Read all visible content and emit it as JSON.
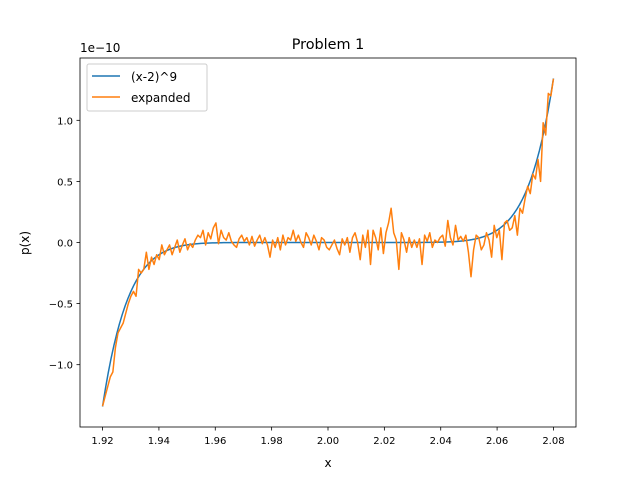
{
  "chart_data": {
    "type": "line",
    "title": "Problem 1",
    "xlabel": "x",
    "ylabel": "p(x)",
    "y_offset_label": "1e−10",
    "y_scale_factor": 1e-10,
    "xlim": [
      1.912,
      2.088
    ],
    "ylim": [
      -1.51e-10,
      1.51e-10
    ],
    "x_ticks": [
      1.92,
      1.94,
      1.96,
      1.98,
      2.0,
      2.02,
      2.04,
      2.06,
      2.08
    ],
    "x_tick_labels": [
      "1.92",
      "1.94",
      "1.96",
      "1.98",
      "2.00",
      "2.02",
      "2.04",
      "2.06",
      "2.08"
    ],
    "y_ticks": [
      -1.0,
      -0.5,
      0.0,
      0.5,
      1.0
    ],
    "y_tick_labels": [
      "−1.0",
      "−0.5",
      "0.0",
      "0.5",
      "1.0"
    ],
    "grid": false,
    "legend_position": "top-left",
    "series": [
      {
        "name": "(x-2)^9",
        "color": "#1f77b4",
        "function": "(x-2)^9",
        "x_range": [
          1.92,
          2.08
        ],
        "n_points": 161
      },
      {
        "name": "expanded",
        "color": "#ff7f0e",
        "x_range": [
          1.92,
          2.08
        ],
        "values_e10": [
          -1.34,
          -1.26,
          -1.18,
          -1.1,
          -1.06,
          -0.86,
          -0.74,
          -0.7,
          -0.66,
          -0.58,
          -0.5,
          -0.44,
          -0.4,
          -0.44,
          -0.22,
          -0.25,
          -0.22,
          -0.08,
          -0.22,
          -0.12,
          -0.18,
          -0.1,
          -0.14,
          -0.02,
          -0.1,
          -0.06,
          -0.02,
          -0.1,
          -0.04,
          0.02,
          -0.08,
          -0.02,
          0.03,
          -0.06,
          -0.01,
          -0.04,
          0.02,
          0.06,
          0.04,
          0.1,
          -0.02,
          0.08,
          0.03,
          0.12,
          0.16,
          -0.01,
          0.1,
          0.04,
          0.02,
          0.08,
          0.01,
          -0.02,
          -0.04,
          0.03,
          0.06,
          0.01,
          0.04,
          -0.02,
          0.05,
          -0.03,
          0.02,
          0.06,
          -0.01,
          0.04,
          -0.02,
          -0.12,
          0.02,
          -0.04,
          0.04,
          -0.06,
          0.06,
          -0.02,
          0.04,
          0.02,
          0.1,
          0.01,
          0.06,
          0.0,
          -0.04,
          0.08,
          0.04,
          -0.02,
          0.06,
          0.01,
          -0.06,
          0.04,
          0.02,
          -0.04,
          -0.06,
          -0.02,
          0.02,
          -0.05,
          -0.1,
          0.03,
          -0.02,
          0.04,
          -0.08,
          0.04,
          0.08,
          0.0,
          -0.14,
          0.06,
          -0.04,
          0.1,
          -0.18,
          0.1,
          0.04,
          -0.06,
          0.12,
          -0.09,
          0.08,
          0.16,
          0.28,
          0.08,
          0.02,
          -0.22,
          0.08,
          0.02,
          -0.08,
          0.04,
          -0.04,
          0.02,
          -0.04,
          0.03,
          -0.18,
          0.06,
          0.01,
          0.08,
          -0.04,
          0.02,
          0.0,
          0.04,
          0.06,
          -0.03,
          0.18,
          0.04,
          -0.02,
          0.14,
          0.02,
          0.05,
          0.01,
          0.06,
          -0.08,
          -0.28,
          -0.06,
          0.06,
          0.04,
          -0.06,
          -0.02,
          0.08,
          0.02,
          -0.12,
          0.14,
          0.04,
          0.1,
          -0.14,
          0.16,
          0.18,
          0.1,
          0.12,
          0.22,
          0.06,
          0.28,
          0.24,
          0.36,
          0.46,
          0.4,
          0.56,
          0.52,
          0.68,
          0.5,
          0.98,
          0.88,
          1.22,
          1.2,
          1.34
        ]
      }
    ]
  }
}
